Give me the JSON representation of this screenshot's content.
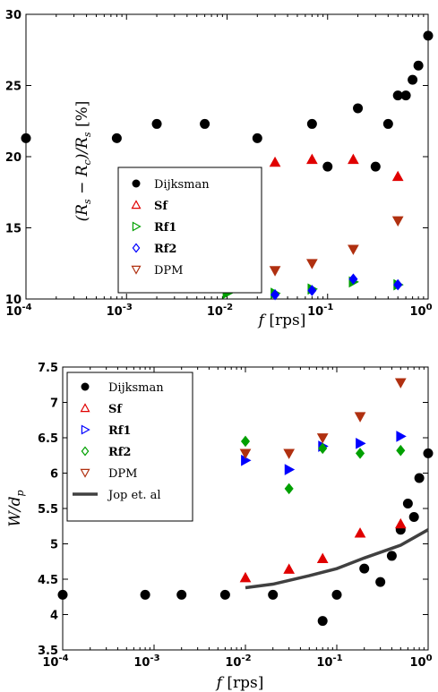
{
  "chart_data": [
    {
      "type": "scatter",
      "xscale": "log",
      "xlim": [
        0.0001,
        1
      ],
      "ylim": [
        10,
        30
      ],
      "xticks": [
        0.0001,
        0.001,
        0.01,
        0.1,
        1
      ],
      "xtick_labels": [
        "10^-4",
        "10^-3",
        "10^-2",
        "10^-1",
        "10^0"
      ],
      "yticks": [
        10,
        15,
        20,
        25,
        30
      ],
      "ytick_labels": [
        "10",
        "15",
        "20",
        "25",
        "30"
      ],
      "xlabel": "f [rps]",
      "ylabel": "(R_s − R_c)/R_s [%]",
      "legend_position": "lower-left",
      "series": [
        {
          "name": "Dijksman",
          "marker": "circle",
          "color": "#000000",
          "x": [
            0.0001,
            0.0008,
            0.002,
            0.006,
            0.02,
            0.07,
            0.1,
            0.2,
            0.3,
            0.4,
            0.5,
            0.6,
            0.7,
            0.8,
            1.0
          ],
          "y": [
            21.3,
            21.3,
            22.3,
            22.3,
            21.3,
            22.3,
            19.3,
            23.4,
            19.3,
            22.3,
            24.3,
            24.3,
            25.4,
            26.4,
            28.5
          ]
        },
        {
          "name": "Sf",
          "marker": "triangle-up",
          "color": "#e00000",
          "x": [
            0.01,
            0.03,
            0.07,
            0.18,
            0.5
          ],
          "y": [
            18.3,
            19.6,
            19.8,
            19.8,
            18.6
          ]
        },
        {
          "name": "Rf1",
          "marker": "triangle-right",
          "color": "#00a000",
          "x": [
            0.01,
            0.03,
            0.07,
            0.18,
            0.5
          ],
          "y": [
            10.4,
            10.4,
            10.7,
            11.2,
            11.0
          ]
        },
        {
          "name": "Rf2",
          "marker": "diamond",
          "color": "#0000ff",
          "x": [
            0.01,
            0.03,
            0.07,
            0.18,
            0.5
          ],
          "y": [
            10.8,
            10.3,
            10.6,
            11.4,
            11.0
          ]
        },
        {
          "name": "DPM",
          "marker": "triangle-down",
          "color": "#b03010",
          "x": [
            0.01,
            0.03,
            0.07,
            0.18,
            0.5
          ],
          "y": [
            11.7,
            12.0,
            12.5,
            13.5,
            15.5
          ]
        }
      ]
    },
    {
      "type": "scatter",
      "xscale": "log",
      "xlim": [
        0.0001,
        1
      ],
      "ylim": [
        3.5,
        7.5
      ],
      "xticks": [
        0.0001,
        0.001,
        0.01,
        0.1,
        1
      ],
      "xtick_labels": [
        "10^-4",
        "10^-3",
        "10^-2",
        "10^-1",
        "10^0"
      ],
      "yticks": [
        3.5,
        4,
        4.5,
        5,
        5.5,
        6,
        6.5,
        7,
        7.5
      ],
      "ytick_labels": [
        "3.5",
        "4",
        "4.5",
        "5",
        "5.5",
        "6",
        "6.5",
        "7",
        "7.5"
      ],
      "xlabel": "f [rps]",
      "ylabel": "W/d_p",
      "legend_position": "top-left",
      "series": [
        {
          "name": "Dijksman",
          "marker": "circle",
          "color": "#000000",
          "x": [
            0.0001,
            0.0008,
            0.002,
            0.006,
            0.02,
            0.07,
            0.1,
            0.2,
            0.3,
            0.4,
            0.5,
            0.6,
            0.7,
            0.8,
            1.0
          ],
          "y": [
            4.28,
            4.28,
            4.28,
            4.28,
            4.28,
            3.91,
            4.28,
            4.65,
            4.46,
            4.83,
            5.2,
            5.57,
            5.38,
            5.93,
            6.28
          ]
        },
        {
          "name": "Sf",
          "marker": "triangle-up",
          "color": "#e00000",
          "x": [
            0.01,
            0.03,
            0.07,
            0.18,
            0.5
          ],
          "y": [
            4.52,
            4.64,
            4.79,
            5.15,
            5.28
          ]
        },
        {
          "name": "Rf1",
          "marker": "triangle-right",
          "color": "#0000ff",
          "x": [
            0.01,
            0.03,
            0.07,
            0.18,
            0.5
          ],
          "y": [
            6.18,
            6.05,
            6.38,
            6.42,
            6.52
          ]
        },
        {
          "name": "Rf2",
          "marker": "diamond",
          "color": "#00a000",
          "x": [
            0.01,
            0.03,
            0.07,
            0.18,
            0.5
          ],
          "y": [
            6.45,
            5.78,
            6.35,
            6.28,
            6.32
          ]
        },
        {
          "name": "DPM",
          "marker": "triangle-down",
          "color": "#b03010",
          "x": [
            0.01,
            0.03,
            0.07,
            0.18,
            0.5
          ],
          "y": [
            6.28,
            6.28,
            6.5,
            6.8,
            7.28
          ]
        },
        {
          "name": "Jop et. al",
          "marker": "line",
          "color": "#404040",
          "x": [
            0.01,
            0.02,
            0.05,
            0.1,
            0.2,
            0.5,
            1.0
          ],
          "y": [
            4.38,
            4.43,
            4.55,
            4.65,
            4.8,
            4.98,
            5.2
          ]
        }
      ]
    }
  ]
}
